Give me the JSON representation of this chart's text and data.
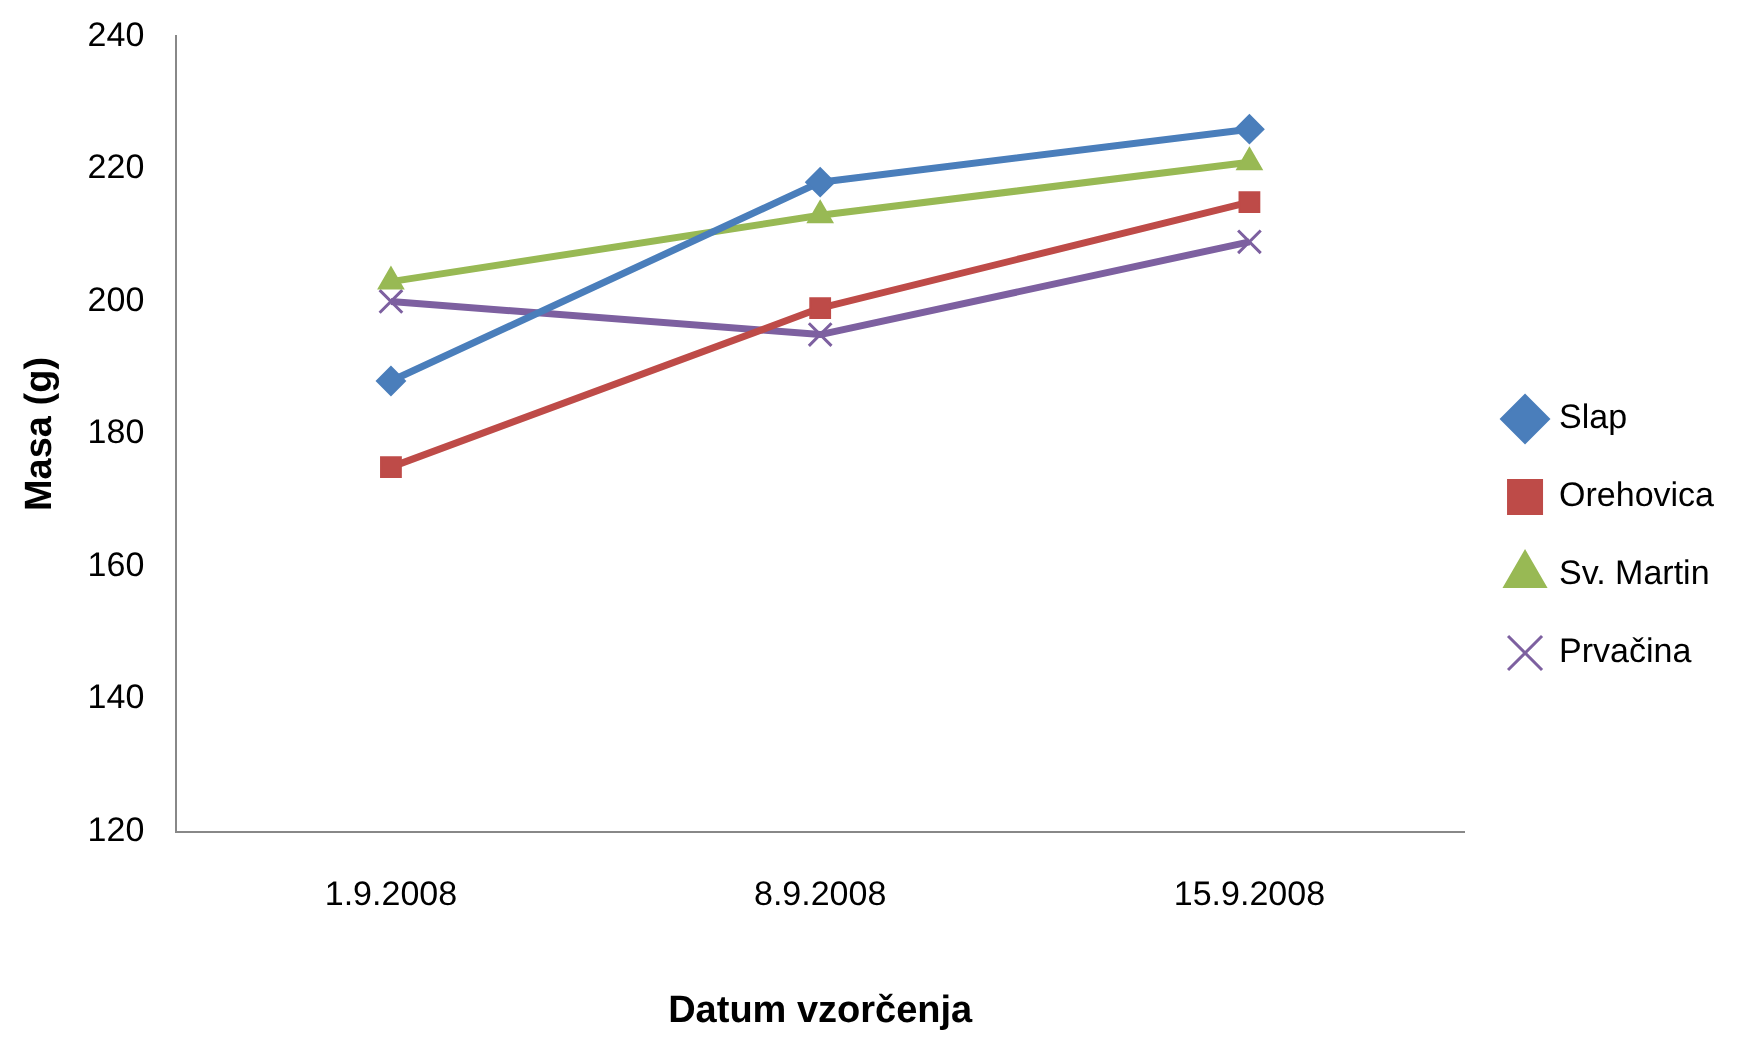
{
  "chart_data": {
    "type": "line",
    "xlabel": "Datum vzorčenja",
    "ylabel": "Masa (g)",
    "categories": [
      "1.9.2008",
      "8.9.2008",
      "15.9.2008"
    ],
    "series": [
      {
        "name": "Slap",
        "color": "#4a7ebb",
        "marker": "diamond",
        "values": [
          188,
          218,
          226
        ]
      },
      {
        "name": "Orehovica",
        "color": "#be4b48",
        "marker": "square",
        "values": [
          175,
          199,
          215
        ]
      },
      {
        "name": "Sv. Martin",
        "color": "#98b954",
        "marker": "triangle",
        "values": [
          203,
          213,
          221
        ]
      },
      {
        "name": "Prvačina",
        "color": "#7d60a0",
        "marker": "cross",
        "values": [
          200,
          195,
          209
        ]
      }
    ],
    "ylim": [
      120,
      240
    ],
    "yticks": [
      120,
      140,
      160,
      180,
      200,
      220,
      240
    ],
    "grid": false,
    "legend": "right",
    "line_style": "solid"
  }
}
